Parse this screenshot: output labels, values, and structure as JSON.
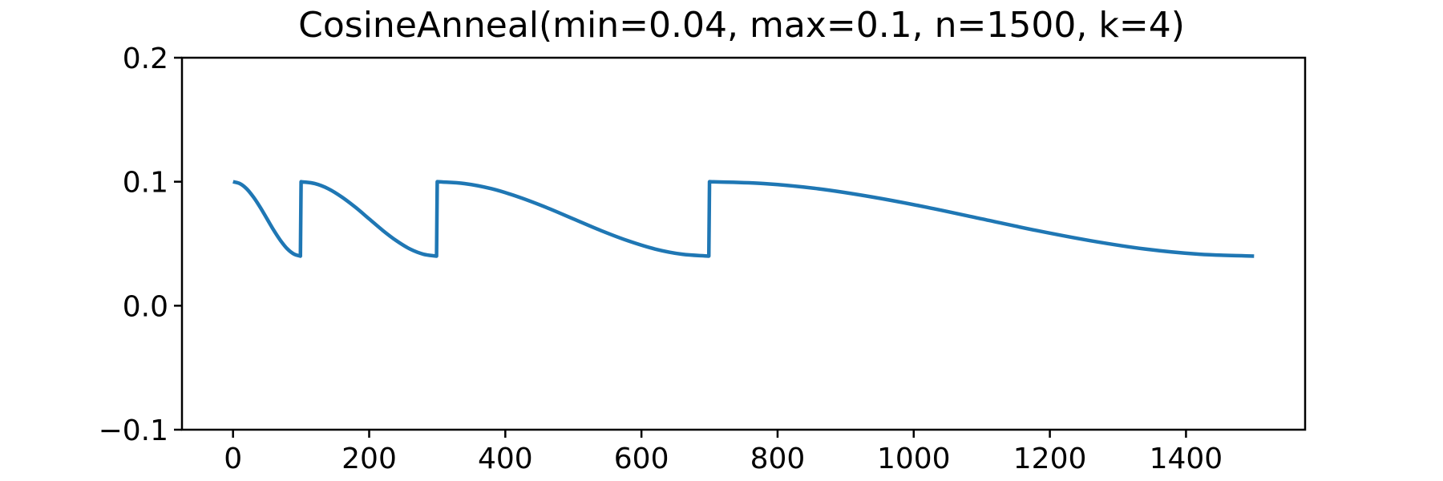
{
  "chart_data": {
    "type": "line",
    "title": "CosineAnneal(min=0.04, max=0.1, n=1500, k=4)",
    "xlabel": "",
    "ylabel": "",
    "xlim": [
      -75,
      1575
    ],
    "ylim": [
      -0.1,
      0.2
    ],
    "grid": false,
    "x_ticks": [
      0,
      200,
      400,
      600,
      800,
      1000,
      1200,
      1400
    ],
    "x_tick_labels": [
      "0",
      "200",
      "400",
      "600",
      "800",
      "1000",
      "1200",
      "1400"
    ],
    "y_ticks": [
      -0.1,
      0.0,
      0.1,
      0.2
    ],
    "y_tick_labels": [
      "−0.1",
      "0.0",
      "0.1",
      "0.2"
    ],
    "series": [
      {
        "color": "#1f77b4",
        "segments": [
          {
            "x": [
              0,
              10,
              20,
              30,
              40,
              50,
              60,
              70,
              80,
              90,
              99
            ],
            "y": [
              0.1,
              0.0985,
              0.0943,
              0.0876,
              0.0793,
              0.07,
              0.0607,
              0.0524,
              0.0457,
              0.0415,
              0.04
            ]
          },
          {
            "x": [
              100,
              120,
              140,
              160,
              180,
              200,
              220,
              240,
              260,
              280,
              299
            ],
            "y": [
              0.1,
              0.0985,
              0.0943,
              0.0876,
              0.0793,
              0.07,
              0.0607,
              0.0524,
              0.0457,
              0.0415,
              0.04
            ]
          },
          {
            "x": [
              300,
              340,
              380,
              420,
              460,
              500,
              540,
              580,
              620,
              660,
              699
            ],
            "y": [
              0.1,
              0.0985,
              0.0943,
              0.0876,
              0.0793,
              0.07,
              0.0607,
              0.0524,
              0.0457,
              0.0415,
              0.04
            ]
          },
          {
            "x": [
              700,
              780,
              860,
              940,
              1020,
              1100,
              1180,
              1260,
              1340,
              1420,
              1500
            ],
            "y": [
              0.1,
              0.0985,
              0.0943,
              0.0876,
              0.0793,
              0.07,
              0.0607,
              0.0524,
              0.0457,
              0.0415,
              0.04
            ]
          }
        ]
      }
    ]
  }
}
